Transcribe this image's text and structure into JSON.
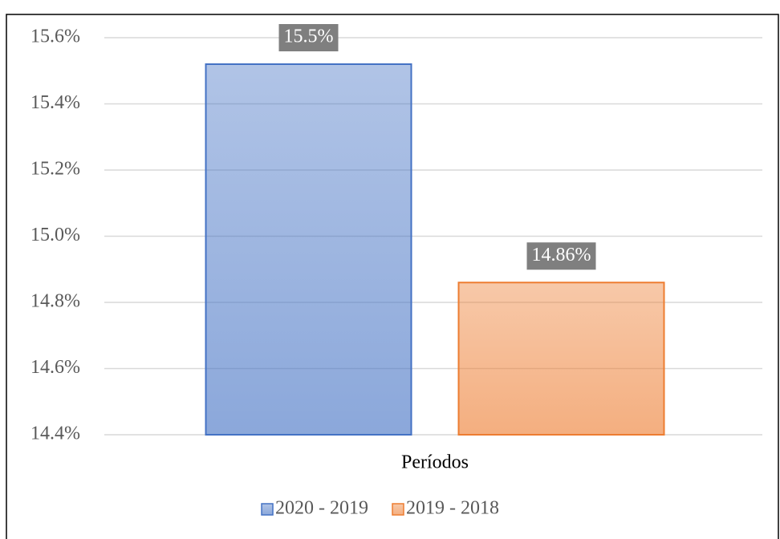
{
  "chart_data": {
    "type": "bar",
    "categories": [
      "Períodos"
    ],
    "series": [
      {
        "name": "2020 - 2019",
        "color": "#4472c4",
        "values": [
          15.52
        ],
        "value_labels": [
          "15.5%"
        ]
      },
      {
        "name": "2019 - 2018",
        "color": "#ed7d31",
        "values": [
          14.86
        ],
        "value_labels": [
          "14.86%"
        ]
      }
    ],
    "ylim": [
      14.4,
      15.6
    ],
    "yticks": [
      {
        "value": 14.4,
        "label": "14.4%"
      },
      {
        "value": 14.6,
        "label": "14.6%"
      },
      {
        "value": 14.8,
        "label": "14.8%"
      },
      {
        "value": 15.0,
        "label": "15.0%"
      },
      {
        "value": 15.2,
        "label": "15.2%"
      },
      {
        "value": 15.4,
        "label": "15.4%"
      },
      {
        "value": 15.6,
        "label": "15.6%"
      }
    ],
    "grid": true,
    "legend": "bottom"
  }
}
